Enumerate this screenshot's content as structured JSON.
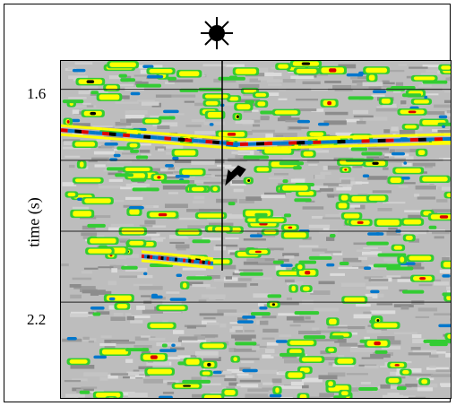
{
  "figure": {
    "ylabel": "time (s)",
    "yticks": [
      {
        "label": "1.6",
        "value": 1.6
      },
      {
        "label": "2.2",
        "value": 2.2
      }
    ],
    "ylim": [
      1.52,
      2.47
    ],
    "gridlines_time": [
      1.6,
      1.8,
      2.0,
      2.2
    ],
    "source_marker_icon": "sun-icon",
    "arrow_icon": "arrow-down-left-icon",
    "colors": {
      "background": "#bdbdbd",
      "green": "#33cc33",
      "yellow": "#ffff00",
      "red": "#dd0000",
      "blue": "#0077cc",
      "black": "#000000",
      "white": "#ffffff"
    },
    "events": [
      {
        "name": "dipping-reflector",
        "t_start": 1.72,
        "t_end": 1.77
      },
      {
        "name": "flat-reflector",
        "t_start": 1.77,
        "t_end": 1.77
      },
      {
        "name": "deep-reflector",
        "t_start": 2.05,
        "t_end": 2.05
      }
    ]
  }
}
